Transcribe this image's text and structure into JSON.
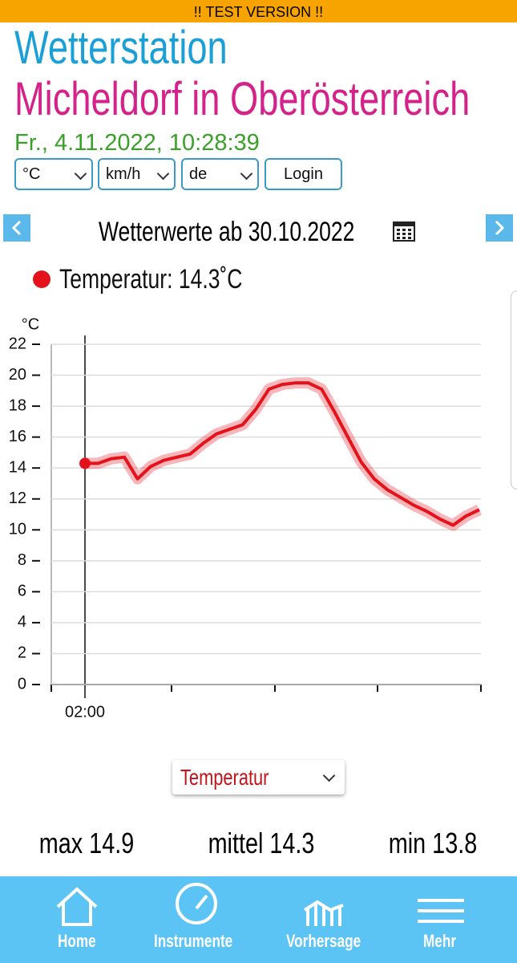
{
  "banner": "!! TEST VERSION !!",
  "header": {
    "title": "Wetterstation",
    "subtitle": "Micheldorf in Oberösterreich",
    "datetime": "Fr., 4.11.2022, 10:28:39"
  },
  "controls": {
    "temperature_unit": "°C",
    "speed_unit": "km/h",
    "language": "de",
    "login": "Login"
  },
  "date_nav": {
    "heading": "Wetterwerte ab 30.10.2022"
  },
  "chart_data": {
    "type": "line",
    "y_label": "°C",
    "series": [
      {
        "name": "Temperatur: 14.3˚C",
        "color": "#e3121b",
        "values": [
          14.3,
          14.3,
          14.6,
          14.7,
          13.3,
          14.1,
          14.5,
          14.7,
          14.9,
          15.6,
          16.2,
          16.5,
          16.8,
          17.8,
          19.1,
          19.4,
          19.5,
          19.5,
          19.1,
          17.6,
          16.0,
          14.4,
          13.3,
          12.6,
          12.1,
          11.6,
          11.2,
          10.7,
          10.3,
          10.9,
          11.3
        ]
      }
    ],
    "categories": [
      "02:00",
      null,
      null,
      null,
      null,
      null,
      null,
      null,
      null,
      null,
      null,
      null,
      null,
      null,
      null,
      null,
      null,
      null,
      null,
      null,
      null,
      null,
      null,
      null,
      null,
      null,
      null,
      null,
      null,
      null,
      null
    ],
    "ylim": [
      0,
      22
    ],
    "yticks": [
      0,
      2,
      4,
      6,
      8,
      10,
      12,
      14,
      16,
      18,
      20,
      22
    ],
    "grid": true
  },
  "metric_select": "Temperatur",
  "stats": [
    {
      "label": "max",
      "value": 14.9
    },
    {
      "label": "mittel",
      "value": 14.3
    },
    {
      "label": "min",
      "value": 13.8
    }
  ],
  "bottom_nav": [
    "Home",
    "Instrumente",
    "Vorhersage",
    "Mehr"
  ]
}
